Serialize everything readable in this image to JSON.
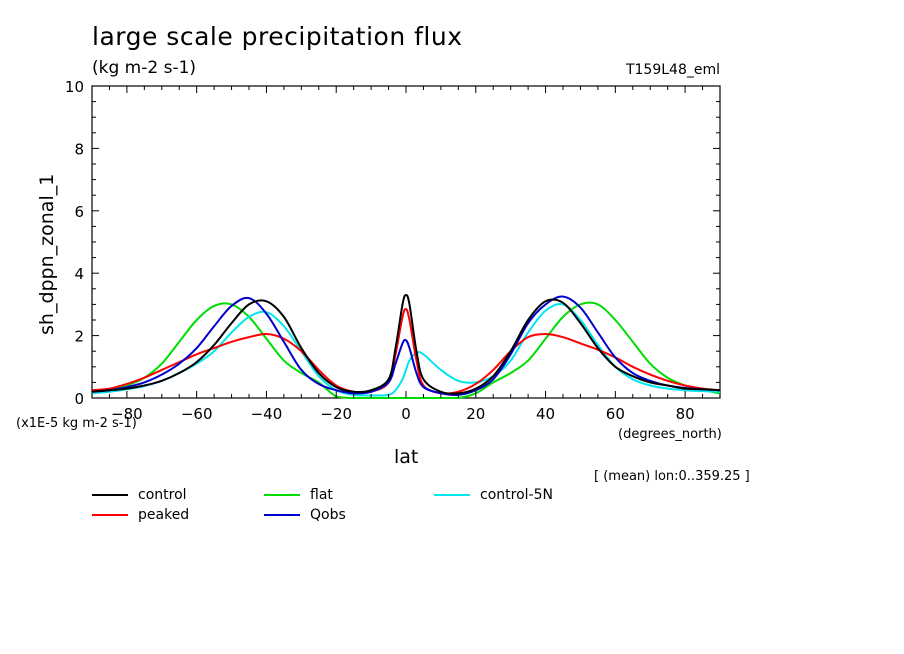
{
  "header": {
    "title": "large scale precipitation flux",
    "units": "(kg m-2 s-1)",
    "run_id": "T159L48_eml"
  },
  "annotations": {
    "scale_note": "(x1E-5 kg m-2 s-1)",
    "x_unit": "(degrees_north)",
    "mean_lon": "[ (mean) lon:0..359.25 ]"
  },
  "chart_data": {
    "type": "line",
    "title": "large scale precipitation flux",
    "subtitle": "(kg m-2 s-1)",
    "xlabel": "lat",
    "ylabel": "sh_dppn_zonal_1",
    "xlim": [
      -90,
      90
    ],
    "ylim": [
      0,
      10
    ],
    "x_ticks": [
      -80,
      -60,
      -40,
      -20,
      0,
      20,
      40,
      60,
      80
    ],
    "y_ticks": [
      0,
      2,
      4,
      6,
      8,
      10
    ],
    "grid": false,
    "legend_position": "bottom",
    "x": [
      -90,
      -85,
      -80,
      -75,
      -70,
      -65,
      -60,
      -55,
      -50,
      -45,
      -40,
      -35,
      -30,
      -25,
      -20,
      -15,
      -10,
      -5,
      -3,
      -1,
      0,
      1,
      3,
      5,
      10,
      15,
      20,
      25,
      30,
      35,
      40,
      45,
      50,
      55,
      60,
      65,
      70,
      75,
      80,
      85,
      90
    ],
    "series": [
      {
        "name": "control",
        "color": "#000000",
        "values": [
          0.2,
          0.25,
          0.3,
          0.4,
          0.55,
          0.8,
          1.15,
          1.7,
          2.4,
          3.0,
          3.1,
          2.6,
          1.6,
          0.8,
          0.35,
          0.2,
          0.25,
          0.6,
          1.6,
          3.0,
          3.3,
          3.0,
          1.5,
          0.6,
          0.2,
          0.15,
          0.3,
          0.7,
          1.5,
          2.5,
          3.1,
          3.05,
          2.4,
          1.6,
          1.0,
          0.7,
          0.5,
          0.4,
          0.3,
          0.28,
          0.25
        ]
      },
      {
        "name": "peaked",
        "color": "#ff0000",
        "values": [
          0.25,
          0.3,
          0.45,
          0.65,
          0.9,
          1.15,
          1.4,
          1.6,
          1.8,
          1.95,
          2.05,
          1.9,
          1.5,
          0.9,
          0.4,
          0.2,
          0.2,
          0.5,
          1.4,
          2.6,
          2.85,
          2.5,
          1.2,
          0.4,
          0.15,
          0.2,
          0.45,
          0.9,
          1.5,
          1.95,
          2.05,
          1.95,
          1.75,
          1.55,
          1.3,
          1.0,
          0.75,
          0.55,
          0.4,
          0.3,
          0.25
        ]
      },
      {
        "name": "flat",
        "color": "#00dd00",
        "values": [
          0.15,
          0.25,
          0.4,
          0.65,
          1.1,
          1.8,
          2.5,
          2.95,
          3.0,
          2.6,
          1.9,
          1.2,
          0.8,
          0.5,
          0.05,
          0.0,
          0.0,
          0.0,
          0.0,
          0.0,
          0.0,
          0.0,
          0.0,
          0.0,
          0.0,
          0.0,
          0.15,
          0.5,
          0.8,
          1.2,
          1.9,
          2.6,
          3.0,
          3.0,
          2.5,
          1.8,
          1.1,
          0.65,
          0.4,
          0.25,
          0.15
        ]
      },
      {
        "name": "Qobs",
        "color": "#0000cc",
        "values": [
          0.2,
          0.25,
          0.35,
          0.5,
          0.75,
          1.1,
          1.6,
          2.3,
          2.95,
          3.2,
          2.7,
          1.8,
          0.9,
          0.45,
          0.25,
          0.15,
          0.2,
          0.5,
          1.1,
          1.75,
          1.85,
          1.6,
          0.8,
          0.35,
          0.15,
          0.1,
          0.25,
          0.6,
          1.4,
          2.4,
          3.0,
          3.25,
          2.9,
          2.1,
          1.3,
          0.8,
          0.55,
          0.4,
          0.32,
          0.28,
          0.25
        ]
      },
      {
        "name": "control-5N",
        "color": "#00e5ee",
        "values": [
          0.15,
          0.2,
          0.28,
          0.38,
          0.55,
          0.8,
          1.1,
          1.5,
          2.1,
          2.6,
          2.75,
          2.3,
          1.5,
          0.7,
          0.25,
          0.1,
          0.08,
          0.1,
          0.25,
          0.6,
          0.9,
          1.2,
          1.45,
          1.4,
          0.9,
          0.55,
          0.5,
          0.7,
          1.2,
          2.1,
          2.8,
          3.0,
          2.5,
          1.7,
          1.0,
          0.6,
          0.4,
          0.3,
          0.25,
          0.22,
          0.2
        ]
      }
    ]
  }
}
